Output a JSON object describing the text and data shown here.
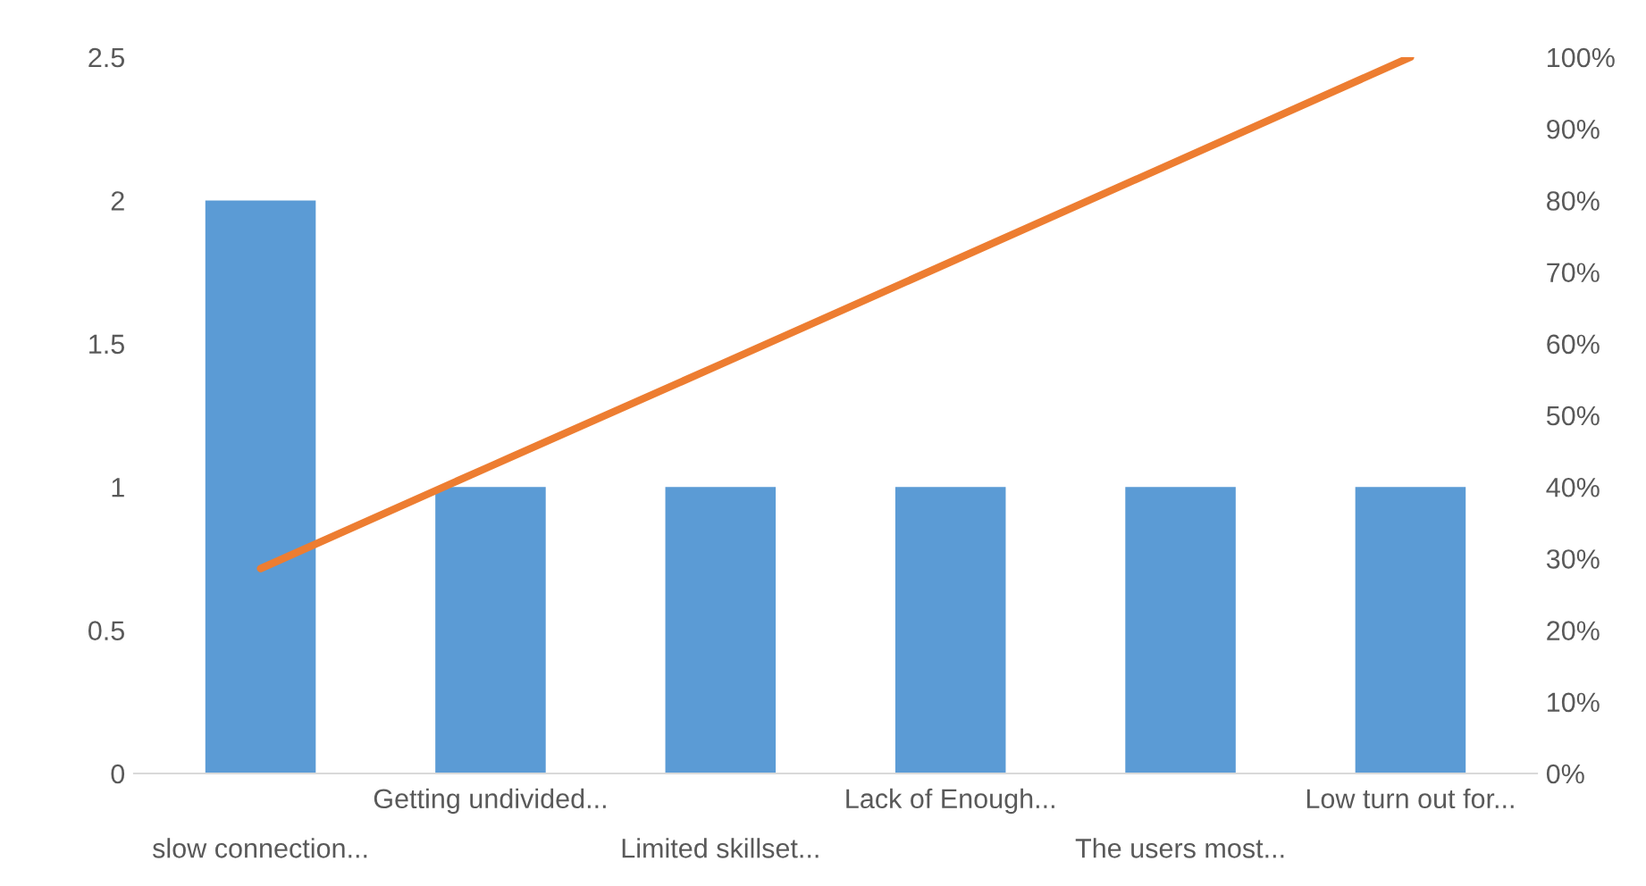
{
  "chart_data": {
    "type": "bar",
    "categories": [
      "slow connection...",
      "Getting undivided...",
      "Limited skillset...",
      "Lack of Enough...",
      "The users most...",
      "Low turn out for..."
    ],
    "series": [
      {
        "color": "#5b9bd5",
        "values": [
          2,
          1,
          1,
          1,
          1,
          1
        ]
      },
      {
        "type": "line",
        "axis": "y2",
        "color": "#ed7d31",
        "values": [
          28.6,
          42.9,
          57.1,
          71.4,
          85.7,
          100
        ]
      }
    ],
    "ylim": [
      0,
      2.5
    ],
    "yticks": [
      0,
      0.5,
      1,
      1.5,
      2,
      2.5
    ],
    "y2lim": [
      0,
      100
    ],
    "y2ticks": [
      {
        "value": 0,
        "label": "0%"
      },
      {
        "value": 10,
        "label": "10%"
      },
      {
        "value": 20,
        "label": "20%"
      },
      {
        "value": 30,
        "label": "30%"
      },
      {
        "value": 40,
        "label": "40%"
      },
      {
        "value": 50,
        "label": "50%"
      },
      {
        "value": 60,
        "label": "60%"
      },
      {
        "value": 70,
        "label": "70%"
      },
      {
        "value": 80,
        "label": "80%"
      },
      {
        "value": 90,
        "label": "90%"
      },
      {
        "value": 100,
        "label": "100%"
      }
    ],
    "grid": false,
    "legend": false
  }
}
